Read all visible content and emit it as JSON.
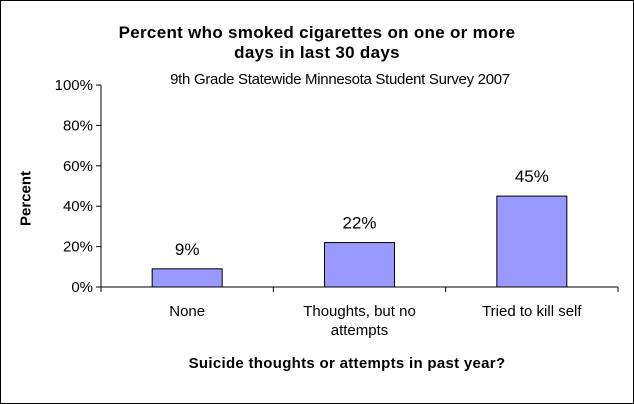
{
  "chart_data": {
    "type": "bar",
    "title_line1": "Percent who smoked cigarettes on one or more",
    "title_line2": "days in last 30 days",
    "subtitle": "9th Grade Statewide Minnesota Student Survey 2007",
    "xlabel": "Suicide thoughts or attempts in past year?",
    "ylabel": "Percent",
    "categories": [
      [
        "None"
      ],
      [
        "Thoughts, but no",
        "attempts"
      ],
      [
        "Tried to kill self"
      ]
    ],
    "values": [
      9,
      22,
      45
    ],
    "data_labels": [
      "9%",
      "22%",
      "45%"
    ],
    "yticks": [
      {
        "value": 0,
        "label": "0%"
      },
      {
        "value": 20,
        "label": "20%"
      },
      {
        "value": 40,
        "label": "40%"
      },
      {
        "value": 60,
        "label": "60%"
      },
      {
        "value": 80,
        "label": "80%"
      },
      {
        "value": 100,
        "label": "100%"
      }
    ],
    "ylim": [
      0,
      100
    ],
    "grid": false,
    "legend": "none",
    "colors": {
      "bar_fill": "#9999ff",
      "bar_stroke": "#000000",
      "axis": "#000000"
    }
  }
}
